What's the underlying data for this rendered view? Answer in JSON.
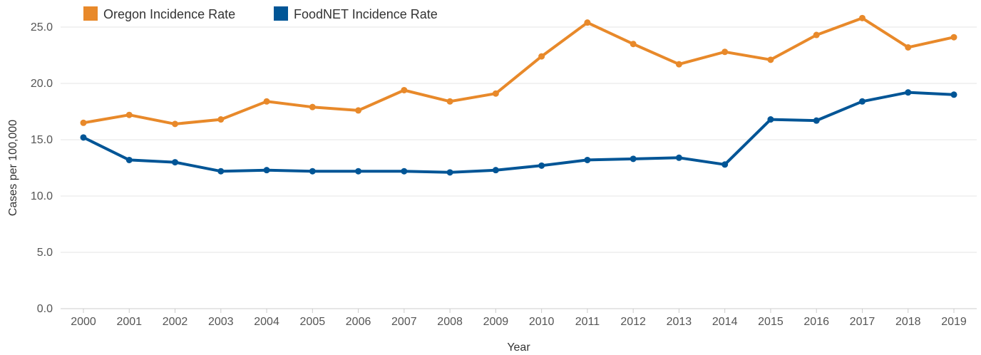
{
  "chart_data": {
    "type": "line",
    "title": "",
    "xlabel": "Year",
    "ylabel": "Cases per 100,000",
    "categories": [
      "2000",
      "2001",
      "2002",
      "2003",
      "2004",
      "2005",
      "2006",
      "2007",
      "2008",
      "2009",
      "2010",
      "2011",
      "2012",
      "2013",
      "2014",
      "2015",
      "2016",
      "2017",
      "2018",
      "2019"
    ],
    "ylim": [
      0,
      25
    ],
    "yticks": [
      "0.0",
      "5.0",
      "10.0",
      "15.0",
      "20.0",
      "25.0"
    ],
    "grid": true,
    "legend_position": "top-left",
    "series": [
      {
        "name": "Oregon Incidence Rate",
        "color": "#E8892A",
        "values": [
          16.5,
          17.2,
          16.4,
          16.8,
          18.4,
          17.9,
          17.6,
          19.4,
          18.4,
          19.1,
          22.4,
          25.4,
          23.5,
          21.7,
          22.8,
          22.1,
          24.3,
          25.8,
          23.2,
          24.1
        ]
      },
      {
        "name": "FoodNET Incidence Rate",
        "color": "#005596",
        "values": [
          15.2,
          13.2,
          13.0,
          12.2,
          12.3,
          12.2,
          12.2,
          12.2,
          12.1,
          12.3,
          12.7,
          13.2,
          13.3,
          13.4,
          12.8,
          16.8,
          16.7,
          18.4,
          19.2,
          19.0
        ]
      }
    ]
  }
}
